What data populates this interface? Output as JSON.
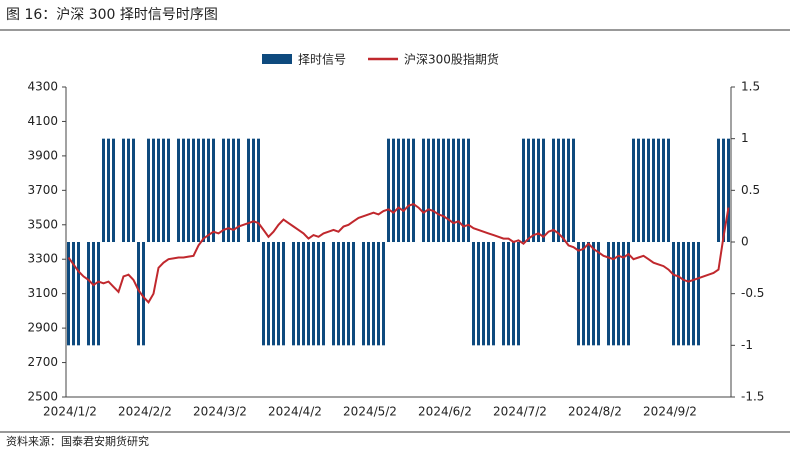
{
  "chart_data": {
    "type": "bar-line",
    "title": "图 16：沪深 300 择时信号时序图",
    "source": "资料来源：国泰君安期货研究",
    "categories": [
      "2024/1/2",
      null,
      null,
      null,
      null,
      null,
      null,
      null,
      null,
      null,
      null,
      null,
      null,
      null,
      null,
      "2024/2/2",
      null,
      null,
      null,
      null,
      null,
      null,
      null,
      null,
      null,
      null,
      null,
      null,
      null,
      null,
      "2024/3/2",
      null,
      null,
      null,
      null,
      null,
      null,
      null,
      null,
      null,
      null,
      null,
      null,
      null,
      null,
      "2024/4/2",
      null,
      null,
      null,
      null,
      null,
      null,
      null,
      null,
      null,
      null,
      null,
      null,
      null,
      null,
      "2024/5/2",
      null,
      null,
      null,
      null,
      null,
      null,
      null,
      null,
      null,
      null,
      null,
      null,
      null,
      null,
      "2024/6/2",
      null,
      null,
      null,
      null,
      null,
      null,
      null,
      null,
      null,
      null,
      null,
      null,
      null,
      null,
      "2024/7/2",
      null,
      null,
      null,
      null,
      null,
      null,
      null,
      null,
      null,
      null,
      null,
      null,
      null,
      null,
      "2024/8/2",
      null,
      null,
      null,
      null,
      null,
      null,
      null,
      null,
      null,
      null,
      null,
      null,
      null,
      null,
      "2024/9/2",
      null,
      null,
      null,
      null,
      null,
      null,
      null,
      null,
      null,
      null,
      null,
      null
    ],
    "series": [
      {
        "name": "择时信号",
        "type": "bar",
        "axis": "y2",
        "color": "#0e4a7e",
        "values": [
          -1,
          -1,
          -1,
          0,
          -1,
          -1,
          -1,
          1,
          1,
          1,
          0,
          1,
          1,
          1,
          -1,
          -1,
          1,
          1,
          1,
          1,
          1,
          0,
          1,
          1,
          1,
          1,
          1,
          1,
          1,
          1,
          0,
          1,
          1,
          1,
          1,
          0,
          1,
          1,
          1,
          -1,
          -1,
          -1,
          -1,
          -1,
          0,
          -1,
          -1,
          -1,
          -1,
          -1,
          -1,
          -1,
          0,
          -1,
          -1,
          -1,
          -1,
          -1,
          0,
          -1,
          -1,
          -1,
          -1,
          -1,
          1,
          1,
          1,
          1,
          1,
          1,
          0,
          1,
          1,
          1,
          1,
          1,
          1,
          1,
          1,
          1,
          1,
          -1,
          -1,
          -1,
          -1,
          -1,
          0,
          -1,
          -1,
          -1,
          -1,
          1,
          1,
          1,
          1,
          1,
          0,
          1,
          1,
          1,
          1,
          1,
          -1,
          -1,
          -1,
          -1,
          -1,
          0,
          -1,
          -1,
          -1,
          -1,
          -1,
          1,
          1,
          1,
          1,
          1,
          1,
          1,
          1,
          -1,
          -1,
          -1,
          -1,
          -1,
          -1,
          0,
          0,
          0,
          1,
          1,
          1
        ]
      },
      {
        "name": "沪深300股指期货",
        "type": "line",
        "axis": "y",
        "color": "#c0282d",
        "values": [
          3310,
          3270,
          3230,
          3200,
          3180,
          3150,
          3170,
          3160,
          3170,
          3140,
          3110,
          3200,
          3210,
          3180,
          3120,
          3080,
          3050,
          3100,
          3250,
          3280,
          3300,
          3305,
          3310,
          3310,
          3315,
          3320,
          3380,
          3420,
          3440,
          3460,
          3450,
          3470,
          3480,
          3470,
          3490,
          3500,
          3510,
          3520,
          3510,
          3470,
          3430,
          3460,
          3500,
          3530,
          3510,
          3490,
          3470,
          3450,
          3420,
          3440,
          3430,
          3450,
          3460,
          3470,
          3460,
          3490,
          3500,
          3520,
          3540,
          3550,
          3560,
          3570,
          3560,
          3580,
          3590,
          3570,
          3600,
          3580,
          3610,
          3620,
          3600,
          3570,
          3590,
          3580,
          3560,
          3550,
          3530,
          3510,
          3520,
          3490,
          3500,
          3480,
          3470,
          3460,
          3450,
          3440,
          3430,
          3420,
          3420,
          3400,
          3410,
          3390,
          3420,
          3440,
          3450,
          3430,
          3460,
          3470,
          3450,
          3420,
          3380,
          3370,
          3350,
          3360,
          3390,
          3360,
          3340,
          3320,
          3310,
          3300,
          3320,
          3310,
          3330,
          3300,
          3310,
          3320,
          3300,
          3280,
          3270,
          3260,
          3240,
          3210,
          3200,
          3180,
          3170,
          3180,
          3190,
          3200,
          3210,
          3220,
          3240,
          3430,
          3600
        ]
      }
    ],
    "ylim": [
      2500,
      4300
    ],
    "yticks": [
      2500,
      2700,
      2900,
      3100,
      3300,
      3500,
      3700,
      3900,
      4100,
      4300
    ],
    "y2lim": [
      -1.5,
      1.5
    ],
    "y2ticks": [
      -1.5,
      -1,
      -0.5,
      0,
      0.5,
      1,
      1.5
    ],
    "legend": "top"
  }
}
